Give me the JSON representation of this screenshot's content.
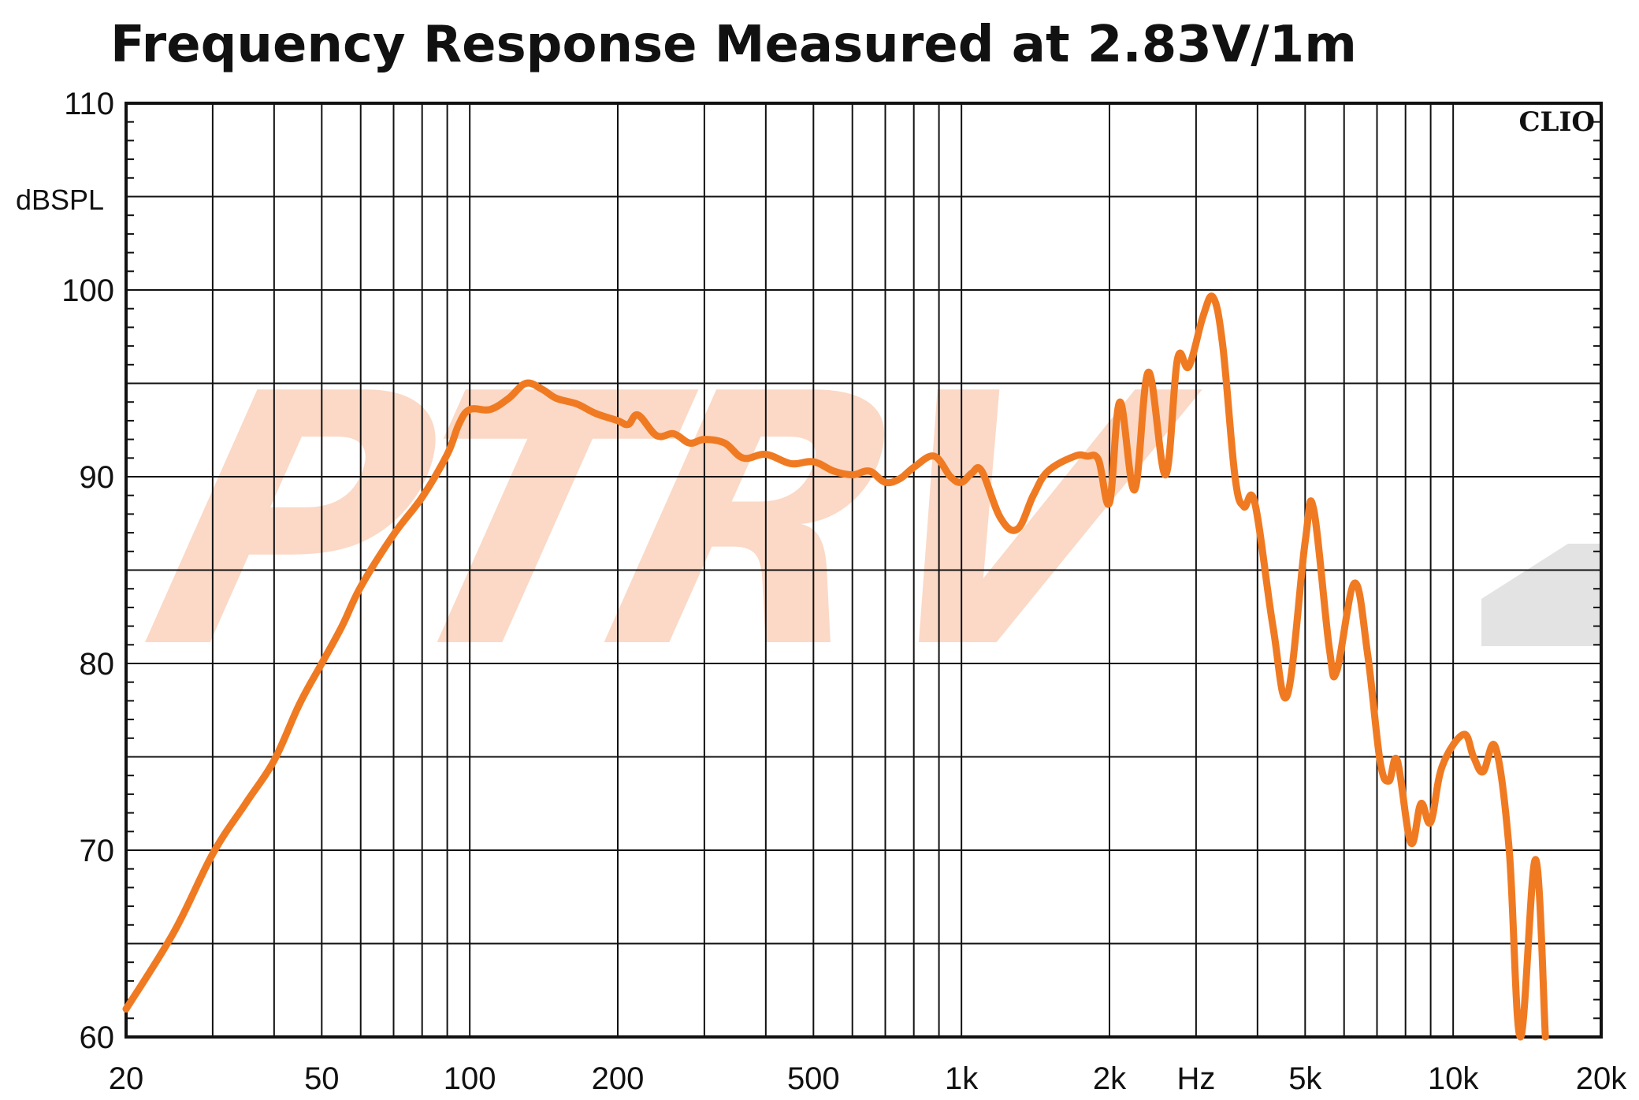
{
  "chart_data": {
    "type": "line",
    "title": "Frequency Response Measured at 2.83V/1m",
    "ylabel": "dBSPL",
    "xlabel_unit": "Hz",
    "x_scale": "log",
    "xlim": [
      20,
      20000
    ],
    "ylim": [
      60,
      110
    ],
    "grid": true,
    "brand_label": "CLIO",
    "watermark_text": "PTRV",
    "x_ticks": [
      {
        "value": 20,
        "label": "20"
      },
      {
        "value": 50,
        "label": "50"
      },
      {
        "value": 100,
        "label": "100"
      },
      {
        "value": 200,
        "label": "200"
      },
      {
        "value": 500,
        "label": "500"
      },
      {
        "value": 1000,
        "label": "1k"
      },
      {
        "value": 2000,
        "label": "2k"
      },
      {
        "value": 5000,
        "label": "5k"
      },
      {
        "value": 10000,
        "label": "10k"
      },
      {
        "value": 20000,
        "label": "20k"
      }
    ],
    "y_ticks": [
      {
        "value": 60,
        "label": "60"
      },
      {
        "value": 70,
        "label": "70"
      },
      {
        "value": 80,
        "label": "80"
      },
      {
        "value": 90,
        "label": "90"
      },
      {
        "value": 100,
        "label": "100"
      },
      {
        "value": 110,
        "label": "110"
      }
    ],
    "colors": {
      "curve": "#f07a22",
      "grid": "#111111",
      "watermark": "#fbd9c6",
      "watermark_grey": "#e3e3e3"
    },
    "series": [
      {
        "points": [
          [
            20,
            61.5
          ],
          [
            25,
            65.6
          ],
          [
            30,
            69.8
          ],
          [
            35,
            72.5
          ],
          [
            40,
            74.8
          ],
          [
            45,
            77.8
          ],
          [
            50,
            80.0
          ],
          [
            55,
            82.0
          ],
          [
            60,
            84.1
          ],
          [
            70,
            86.9
          ],
          [
            80,
            88.9
          ],
          [
            90,
            91.2
          ],
          [
            95,
            92.8
          ],
          [
            100,
            93.6
          ],
          [
            110,
            93.6
          ],
          [
            120,
            94.2
          ],
          [
            130,
            95.0
          ],
          [
            140,
            94.7
          ],
          [
            150,
            94.2
          ],
          [
            165,
            93.9
          ],
          [
            180,
            93.4
          ],
          [
            200,
            93.0
          ],
          [
            210,
            92.8
          ],
          [
            220,
            93.3
          ],
          [
            240,
            92.2
          ],
          [
            260,
            92.3
          ],
          [
            280,
            91.8
          ],
          [
            300,
            92.0
          ],
          [
            330,
            91.8
          ],
          [
            360,
            91.0
          ],
          [
            400,
            91.2
          ],
          [
            450,
            90.7
          ],
          [
            500,
            90.8
          ],
          [
            550,
            90.3
          ],
          [
            600,
            90.1
          ],
          [
            650,
            90.3
          ],
          [
            700,
            89.7
          ],
          [
            750,
            89.9
          ],
          [
            800,
            90.5
          ],
          [
            880,
            91.1
          ],
          [
            950,
            90.0
          ],
          [
            1000,
            89.7
          ],
          [
            1050,
            90.2
          ],
          [
            1100,
            90.3
          ],
          [
            1200,
            87.8
          ],
          [
            1300,
            87.2
          ],
          [
            1400,
            89.0
          ],
          [
            1500,
            90.3
          ],
          [
            1700,
            91.1
          ],
          [
            1800,
            91.1
          ],
          [
            1900,
            90.9
          ],
          [
            2000,
            88.6
          ],
          [
            2100,
            94.0
          ],
          [
            2250,
            89.3
          ],
          [
            2400,
            95.6
          ],
          [
            2600,
            90.1
          ],
          [
            2750,
            96.3
          ],
          [
            2900,
            95.9
          ],
          [
            3100,
            98.6
          ],
          [
            3250,
            99.6
          ],
          [
            3400,
            97.0
          ],
          [
            3600,
            90.0
          ],
          [
            3750,
            88.4
          ],
          [
            3950,
            88.6
          ],
          [
            4300,
            82.0
          ],
          [
            4600,
            78.3
          ],
          [
            5000,
            86.5
          ],
          [
            5200,
            88.3
          ],
          [
            5600,
            80.8
          ],
          [
            5800,
            79.6
          ],
          [
            6300,
            84.3
          ],
          [
            6700,
            80.5
          ],
          [
            7100,
            74.8
          ],
          [
            7400,
            73.7
          ],
          [
            7700,
            74.8
          ],
          [
            8200,
            70.4
          ],
          [
            8600,
            72.5
          ],
          [
            9000,
            71.5
          ],
          [
            9500,
            74.5
          ],
          [
            10500,
            76.2
          ],
          [
            11000,
            75.0
          ],
          [
            11500,
            74.2
          ],
          [
            12200,
            75.5
          ],
          [
            13000,
            70.0
          ],
          [
            13700,
            60.0
          ],
          [
            14700,
            69.5
          ],
          [
            15400,
            60.0
          ]
        ]
      }
    ]
  }
}
